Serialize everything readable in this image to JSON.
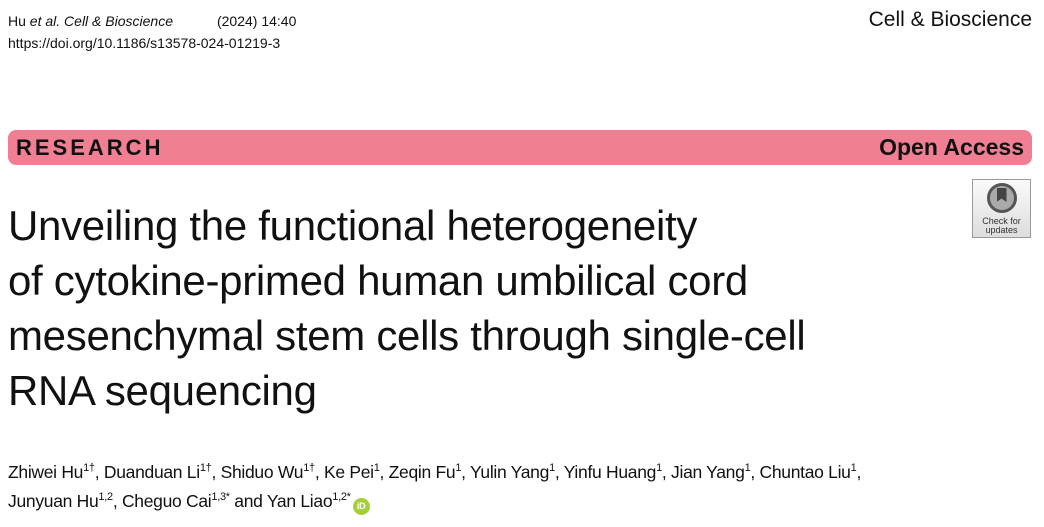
{
  "header": {
    "citation_authors": "Hu ",
    "citation_etal": "et al.",
    "citation_journal": " Cell & Bioscience",
    "citation_year_volume": "(2024) 14:40",
    "doi": "https://doi.org/10.1186/s13578-024-01219-3",
    "journal_name": "Cell & Bioscience"
  },
  "banner": {
    "article_type": "RESEARCH",
    "access": "Open Access",
    "color": "#f07f93"
  },
  "badge": {
    "line1": "Check for",
    "line2": "updates",
    "icon": "bookmark-circle-icon"
  },
  "title_lines": [
    "Unveiling the functional heterogeneity",
    "of cytokine-primed human umbilical cord",
    "mesenchymal stem cells through single-cell",
    "RNA sequencing"
  ],
  "authors": [
    {
      "name": "Zhiwei Hu",
      "sup": "1†",
      "sep": ", "
    },
    {
      "name": "Duanduan Li",
      "sup": "1†",
      "sep": ", "
    },
    {
      "name": "Shiduo Wu",
      "sup": "1†",
      "sep": ", "
    },
    {
      "name": "Ke Pei",
      "sup": "1",
      "sep": ", "
    },
    {
      "name": "Zeqin Fu",
      "sup": "1",
      "sep": ", "
    },
    {
      "name": "Yulin Yang",
      "sup": "1",
      "sep": ", "
    },
    {
      "name": "Yinfu Huang",
      "sup": "1",
      "sep": ", "
    },
    {
      "name": "Jian Yang",
      "sup": "1",
      "sep": ", "
    },
    {
      "name": "Chuntao Liu",
      "sup": "1",
      "sep": ", "
    },
    {
      "name": "Junyuan Hu",
      "sup": "1,2",
      "sep": ", "
    },
    {
      "name": "Cheguo Cai",
      "sup": "1,3*",
      "sep": " and "
    },
    {
      "name": "Yan Liao",
      "sup": "1,2*",
      "sep": ""
    }
  ],
  "orcid": {
    "label": "iD",
    "color": "#a6ce39"
  }
}
